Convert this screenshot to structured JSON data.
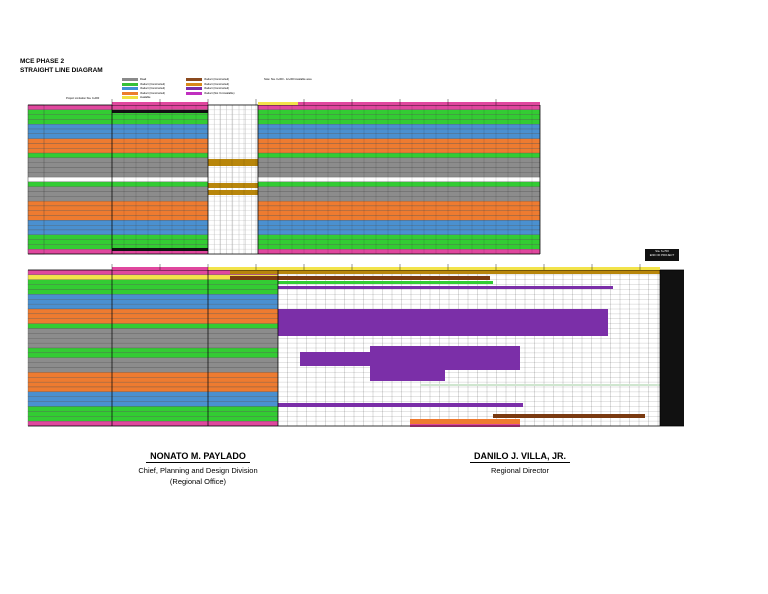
{
  "document": {
    "title_line1": "MCE PHASE 2",
    "title_line2": "STRAIGHT LINE DIAGRAM",
    "note": "Note: Sta. 0+000 - 12+000 Available area",
    "header_text": "Project Limitation Sta. 0+000",
    "end_label_1": "Sta. 6+700",
    "end_label_2": "END OF PROJECT"
  },
  "legend": [
    {
      "label": "Road",
      "color": "#8a8a8a"
    },
    {
      "label": "Viaduct (Constructed)",
      "color": "#36c136"
    },
    {
      "label": "Viaduct (Constructed)",
      "color": "#3f8fd4"
    },
    {
      "label": "Viaduct (Constructed)",
      "color": "#ec7c2c"
    },
    {
      "label": "Available",
      "color": "#f0e040"
    },
    {
      "label": "Viaduct (Constructed)",
      "color": "#8b4a1e"
    },
    {
      "label": "Viaduct (Constructed)",
      "color": "#d8891a"
    },
    {
      "label": "Viaduct (Constructed)",
      "color": "#7a2ea8"
    },
    {
      "label": "Viaduct (Not Yet Available)",
      "color": "#c030c0"
    }
  ],
  "colors": {
    "pink": "#e0479e",
    "green": "#33cc33",
    "blue": "#4a90d0",
    "orange": "#ee7b30",
    "gray": "#8c8c8c",
    "gold": "#b8860b",
    "purple": "#7b2fa8",
    "yellow": "#f2e34a",
    "brown": "#7a3a10",
    "black": "#111111"
  },
  "panel1_rows": [
    "pink",
    "green",
    "green",
    "green",
    "blue",
    "blue",
    "blue",
    "orange",
    "orange",
    "orange",
    "green",
    "gray",
    "gray",
    "gray",
    "gray",
    "white",
    "green",
    "gray",
    "gray",
    "gray",
    "orange",
    "orange",
    "orange",
    "orange",
    "blue",
    "blue",
    "blue",
    "green",
    "green",
    "green",
    "pink"
  ],
  "panel2_rows": [
    "pink",
    "yellow",
    "green",
    "green",
    "green",
    "blue",
    "blue",
    "blue",
    "orange",
    "orange",
    "orange",
    "green",
    "gray",
    "gray",
    "gray",
    "gray",
    "green",
    "green",
    "gray",
    "gray",
    "gray",
    "orange",
    "orange",
    "orange",
    "orange",
    "blue",
    "blue",
    "blue",
    "green",
    "green",
    "green",
    "pink"
  ],
  "signatories": [
    {
      "name": "NONATO M. PAYLADO",
      "role1": "Chief, Planning and Design Division",
      "role2": "(Regional Office)"
    },
    {
      "name": "DANILO J. VILLA, JR.",
      "role1": "Regional Director",
      "role2": ""
    }
  ]
}
